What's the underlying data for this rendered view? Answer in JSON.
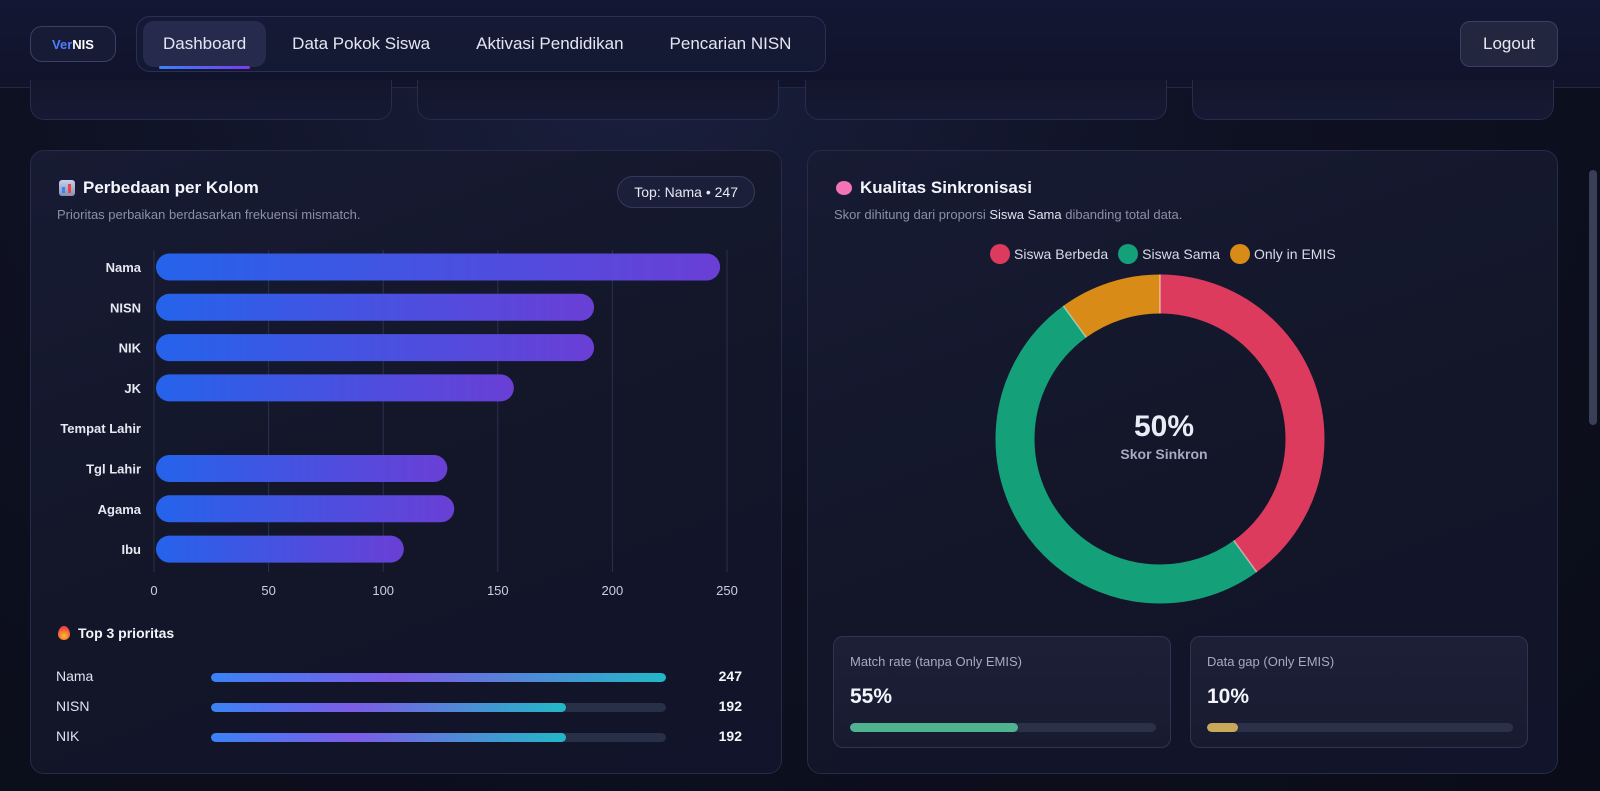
{
  "brand": {
    "part1": "Ver",
    "part2": "NIS"
  },
  "nav": {
    "items": [
      {
        "label": "Dashboard",
        "active": true
      },
      {
        "label": "Data Pokok Siswa",
        "active": false
      },
      {
        "label": "Aktivasi Pendidikan",
        "active": false
      },
      {
        "label": "Pencarian NISN",
        "active": false
      }
    ],
    "logout_label": "Logout"
  },
  "left_panel": {
    "icon": "bar-chart-icon",
    "title": "Perbedaan per Kolom",
    "subtitle": "Prioritas perbaikan berdasarkan frekuensi mismatch.",
    "badge": "Top: Nama • 247",
    "top3_icon": "fire-icon",
    "top3_title": "Top 3 prioritas",
    "top3": [
      {
        "label": "Nama",
        "value": 247,
        "fill": 1.0
      },
      {
        "label": "NISN",
        "value": 192,
        "fill": 0.78
      },
      {
        "label": "NIK",
        "value": 192,
        "fill": 0.78
      }
    ]
  },
  "right_panel": {
    "icon": "brain-icon",
    "title": "Kualitas Sinkronisasi",
    "subtitle_pre": "Skor dihitung dari proporsi ",
    "subtitle_hl": "Siswa Sama",
    "subtitle_post": " dibanding total data.",
    "center_value": "50%",
    "center_label": "Skor Sinkron",
    "metrics": [
      {
        "label": "Match rate (tanpa Only EMIS)",
        "value": "55%",
        "fill": 0.55,
        "color": "#4fb38f"
      },
      {
        "label": "Data gap (Only EMIS)",
        "value": "10%",
        "fill": 0.1,
        "color": "#c9a85a"
      }
    ]
  },
  "chart_data": [
    {
      "type": "bar",
      "orientation": "horizontal",
      "title": "Perbedaan per Kolom",
      "categories": [
        "Nama",
        "NISN",
        "NIK",
        "JK",
        "Tempat Lahir",
        "Tgl Lahir",
        "Agama",
        "Ibu"
      ],
      "values": [
        247,
        192,
        192,
        157,
        0,
        128,
        131,
        109
      ],
      "xlim": [
        0,
        250
      ],
      "xticks": [
        0,
        50,
        100,
        150,
        200,
        250
      ],
      "grid": true
    },
    {
      "type": "pie",
      "variant": "donut",
      "title": "Kualitas Sinkronisasi",
      "labels": [
        "Siswa Berbeda",
        "Siswa Sama",
        "Only in EMIS"
      ],
      "values": [
        40,
        50,
        10
      ],
      "colors": [
        "#dc3b5d",
        "#14a078",
        "#d88b16"
      ],
      "legend": "top"
    }
  ]
}
